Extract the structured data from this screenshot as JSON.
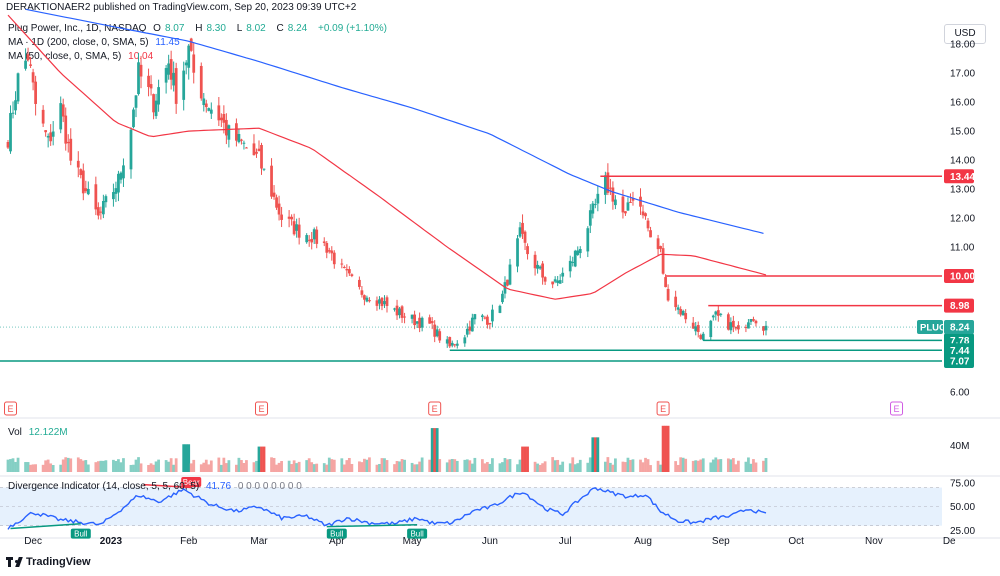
{
  "header": {
    "published_by": "DERAKTIONAER2 published on TradingView.com, Sep 20, 2023 09:39 UTC+2"
  },
  "legend": {
    "title": "Plug Power, Inc., 1D, NASDAQ",
    "open_label": "O",
    "open": "8.07",
    "high_label": "H",
    "high": "8.30",
    "low_label": "L",
    "low": "8.02",
    "close_label": "C",
    "close": "8.24",
    "change": "+0.09 (+1.10%)",
    "ma200_label": "MA · 1D (200, close, 0, SMA, 5)",
    "ma200_value": "11.45",
    "ma50_label": "MA (50, close, 0, SMA, 5)",
    "ma50_value": "10.04",
    "vol_label": "Vol",
    "vol_value": "12.122M",
    "div_label": "Divergence Indicator (14, close, 5, 5, 60, 5)",
    "div_value": "41.76",
    "div_zeros": "0 0 0 0 0 0 0 0"
  },
  "currency_button": "USD",
  "footer": {
    "brand": "TradingView"
  },
  "colors": {
    "up": "#26a69a",
    "down": "#ef5350",
    "ma200": "#2962ff",
    "ma50": "#f23645",
    "res_line": "#f23645",
    "sup_line": "#089981",
    "rsi": "#2962ff",
    "bull": "#089981",
    "bear": "#f23645",
    "earn": "#ef5350",
    "earn_future": "#d05ce3"
  },
  "chart_data": [
    {
      "type": "candlestick",
      "symbol": "PLUG",
      "price_axis": [
        6.0,
        7.0,
        8.0,
        9.0,
        10.0,
        11.0,
        12.0,
        13.0,
        14.0,
        15.0,
        16.0,
        17.0,
        18.0
      ],
      "price_axis_labels": [
        "6.00",
        "7.00",
        "8.00",
        "9.00",
        "10.00",
        "11.00",
        "12.00",
        "13.00",
        "14.00",
        "15.00",
        "16.00",
        "17.00",
        "18.00"
      ],
      "x_labels": [
        "Dec",
        "2023",
        "Feb",
        "Mar",
        "Apr",
        "May",
        "Jun",
        "Jul",
        "Aug",
        "Sep",
        "Oct",
        "Nov",
        "De"
      ],
      "ylim": [
        6.0,
        18.9
      ],
      "last_price": {
        "label": "PLUG",
        "value": "8.24"
      },
      "levels": [
        {
          "value": 13.44,
          "label": "13.44",
          "kind": "resistance"
        },
        {
          "value": 10.0,
          "label": "10.00",
          "kind": "resistance"
        },
        {
          "value": 8.98,
          "label": "8.98",
          "kind": "resistance"
        },
        {
          "value": 7.78,
          "label": "7.78",
          "kind": "support"
        },
        {
          "value": 7.44,
          "label": "7.44",
          "kind": "support"
        },
        {
          "value": 7.07,
          "label": "7.07",
          "kind": "support"
        }
      ],
      "earnings_markers": [
        {
          "label": "E",
          "month": "Nov",
          "future": false
        },
        {
          "label": "E",
          "month": "Mar",
          "future": false
        },
        {
          "label": "E",
          "month": "May",
          "future": false
        },
        {
          "label": "E",
          "month": "Aug",
          "future": false
        },
        {
          "label": "E",
          "month": "Nov",
          "future": true
        }
      ],
      "close_keypoints": [
        [
          "2022-11-21",
          14.8
        ],
        [
          "2022-11-25",
          16.8
        ],
        [
          "2022-11-29",
          17.6
        ],
        [
          "2022-12-02",
          15.9
        ],
        [
          "2022-12-07",
          14.6
        ],
        [
          "2022-12-12",
          15.8
        ],
        [
          "2022-12-16",
          14.0
        ],
        [
          "2022-12-21",
          13.1
        ],
        [
          "2022-12-27",
          12.0
        ],
        [
          "2022-12-30",
          12.5
        ],
        [
          "2023-01-04",
          13.3
        ],
        [
          "2023-01-09",
          15.2
        ],
        [
          "2023-01-12",
          17.0
        ],
        [
          "2023-01-18",
          16.0
        ],
        [
          "2023-01-24",
          17.4
        ],
        [
          "2023-01-27",
          16.3
        ],
        [
          "2023-02-01",
          17.8
        ],
        [
          "2023-02-03",
          17.0
        ],
        [
          "2023-02-08",
          16.0
        ],
        [
          "2023-02-13",
          15.5
        ],
        [
          "2023-02-17",
          14.9
        ],
        [
          "2023-02-23",
          14.5
        ],
        [
          "2023-03-01",
          14.0
        ],
        [
          "2023-03-06",
          12.9
        ],
        [
          "2023-03-10",
          12.0
        ],
        [
          "2023-03-16",
          11.6
        ],
        [
          "2023-03-22",
          11.4
        ],
        [
          "2023-03-28",
          11.0
        ],
        [
          "2023-04-03",
          10.2
        ],
        [
          "2023-04-10",
          9.5
        ],
        [
          "2023-04-17",
          9.2
        ],
        [
          "2023-04-24",
          8.8
        ],
        [
          "2023-05-01",
          8.5
        ],
        [
          "2023-05-08",
          8.3
        ],
        [
          "2023-05-12",
          7.9
        ],
        [
          "2023-05-16",
          7.55
        ],
        [
          "2023-05-22",
          8.0
        ],
        [
          "2023-05-26",
          8.6
        ],
        [
          "2023-06-01",
          8.5
        ],
        [
          "2023-06-06",
          9.3
        ],
        [
          "2023-06-09",
          10.2
        ],
        [
          "2023-06-13",
          11.4
        ],
        [
          "2023-06-16",
          10.8
        ],
        [
          "2023-06-22",
          10.0
        ],
        [
          "2023-06-27",
          9.7
        ],
        [
          "2023-07-03",
          10.4
        ],
        [
          "2023-07-07",
          11.1
        ],
        [
          "2023-07-12",
          12.2
        ],
        [
          "2023-07-17",
          13.2
        ],
        [
          "2023-07-20",
          12.8
        ],
        [
          "2023-07-25",
          12.0
        ],
        [
          "2023-07-28",
          12.8
        ],
        [
          "2023-08-01",
          12.3
        ],
        [
          "2023-08-04",
          11.3
        ],
        [
          "2023-08-08",
          10.8
        ],
        [
          "2023-08-10",
          9.5
        ],
        [
          "2023-08-15",
          8.9
        ],
        [
          "2023-08-21",
          8.3
        ],
        [
          "2023-08-25",
          7.9
        ],
        [
          "2023-08-30",
          8.6
        ],
        [
          "2023-09-05",
          8.3
        ],
        [
          "2023-09-08",
          8.0
        ],
        [
          "2023-09-13",
          8.7
        ],
        [
          "2023-09-19",
          8.24
        ]
      ],
      "ma200_keypoints": [
        [
          "2022-11-28",
          19.2
        ],
        [
          "2023-01-02",
          18.6
        ],
        [
          "2023-02-01",
          18.1
        ],
        [
          "2023-03-01",
          17.4
        ],
        [
          "2023-04-03",
          16.5
        ],
        [
          "2023-05-01",
          15.8
        ],
        [
          "2023-06-01",
          14.9
        ],
        [
          "2023-07-03",
          13.5
        ],
        [
          "2023-07-20",
          12.9
        ],
        [
          "2023-08-15",
          12.2
        ],
        [
          "2023-09-19",
          11.45
        ]
      ],
      "ma50_keypoints": [
        [
          "2022-11-21",
          19.0
        ],
        [
          "2022-12-12",
          17.0
        ],
        [
          "2023-01-03",
          15.3
        ],
        [
          "2023-01-17",
          14.8
        ],
        [
          "2023-02-01",
          15.0
        ],
        [
          "2023-03-01",
          15.1
        ],
        [
          "2023-03-22",
          14.4
        ],
        [
          "2023-04-17",
          12.8
        ],
        [
          "2023-05-15",
          11.0
        ],
        [
          "2023-06-08",
          9.55
        ],
        [
          "2023-06-27",
          9.2
        ],
        [
          "2023-07-12",
          9.4
        ],
        [
          "2023-07-25",
          10.1
        ],
        [
          "2023-08-08",
          10.75
        ],
        [
          "2023-08-21",
          10.7
        ],
        [
          "2023-09-19",
          10.04
        ]
      ]
    },
    {
      "type": "bar",
      "name": "Vol",
      "axis_label": "40M",
      "last_value": "12.122M",
      "spikes": [
        [
          "2023-01-31",
          24
        ],
        [
          "2023-03-02",
          22
        ],
        [
          "2023-05-10",
          38
        ],
        [
          "2023-07-13",
          30
        ],
        [
          "2023-08-10",
          40
        ],
        [
          "2023-06-15",
          22
        ]
      ]
    },
    {
      "type": "line",
      "name": "Divergence Indicator",
      "axis_ticks": [
        "25.00",
        "50.00",
        "75.00"
      ],
      "ylim": [
        15,
        80
      ],
      "band": [
        30,
        70
      ],
      "keypoints": [
        [
          "2022-11-21",
          28
        ],
        [
          "2022-12-01",
          44
        ],
        [
          "2022-12-12",
          36
        ],
        [
          "2022-12-28",
          31
        ],
        [
          "2023-01-05",
          47
        ],
        [
          "2023-01-12",
          62
        ],
        [
          "2023-01-20",
          55
        ],
        [
          "2023-01-30",
          68
        ],
        [
          "2023-02-03",
          62
        ],
        [
          "2023-02-10",
          52
        ],
        [
          "2023-02-20",
          45
        ],
        [
          "2023-03-01",
          50
        ],
        [
          "2023-03-10",
          38
        ],
        [
          "2023-03-20",
          40
        ],
        [
          "2023-03-28",
          30
        ],
        [
          "2023-04-05",
          38
        ],
        [
          "2023-04-14",
          33
        ],
        [
          "2023-04-24",
          32
        ],
        [
          "2023-05-03",
          38
        ],
        [
          "2023-05-10",
          32
        ],
        [
          "2023-05-17",
          33
        ],
        [
          "2023-05-26",
          46
        ],
        [
          "2023-06-02",
          50
        ],
        [
          "2023-06-09",
          60
        ],
        [
          "2023-06-14",
          66
        ],
        [
          "2023-06-23",
          48
        ],
        [
          "2023-06-30",
          42
        ],
        [
          "2023-07-07",
          58
        ],
        [
          "2023-07-13",
          70
        ],
        [
          "2023-07-20",
          64
        ],
        [
          "2023-07-27",
          60
        ],
        [
          "2023-08-02",
          63
        ],
        [
          "2023-08-08",
          45
        ],
        [
          "2023-08-15",
          35
        ],
        [
          "2023-08-22",
          33
        ],
        [
          "2023-08-29",
          38
        ],
        [
          "2023-09-05",
          40
        ],
        [
          "2023-09-12",
          48
        ],
        [
          "2023-09-19",
          41.76
        ]
      ],
      "signals": [
        {
          "label": "Bull",
          "date": "2022-12-20",
          "kind": "bull"
        },
        {
          "label": "Bull",
          "date": "2023-04-01",
          "kind": "bull"
        },
        {
          "label": "Bull",
          "date": "2023-05-03",
          "kind": "bull"
        },
        {
          "label": "Bear",
          "date": "2023-02-02",
          "kind": "bear"
        }
      ]
    }
  ]
}
